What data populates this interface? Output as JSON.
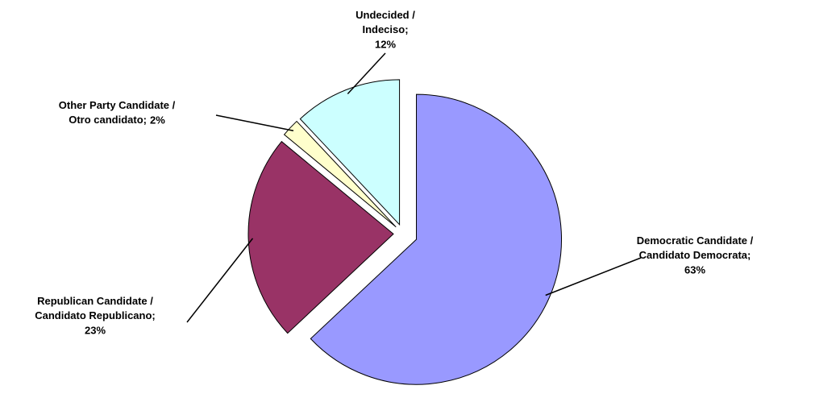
{
  "chart_data": {
    "type": "pie",
    "categories": [
      "Democratic Candidate / Candidato Democrata;",
      "Republican Candidate / Candidato Republicano;",
      "Other Party Candidate / Otro candidato;",
      "Undecided / Indeciso;"
    ],
    "values": [
      63,
      23,
      2,
      12
    ],
    "value_labels": [
      "63%",
      "23%",
      "2%",
      "12%"
    ],
    "colors": [
      "#9999ff",
      "#993366",
      "#ffffcc",
      "#ccffff"
    ]
  }
}
